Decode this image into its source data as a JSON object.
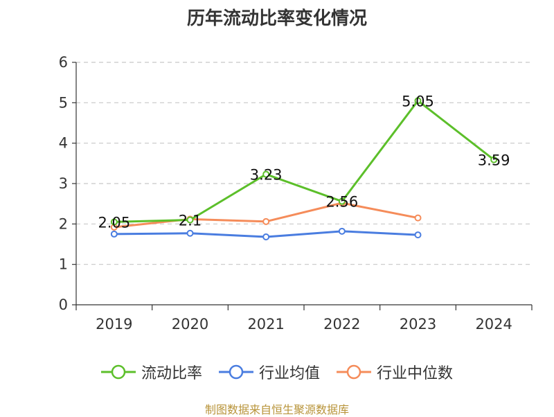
{
  "chart_data": {
    "type": "line",
    "title": "历年流动比率变化情况",
    "categories": [
      "2019",
      "2020",
      "2021",
      "2022",
      "2023",
      "2024"
    ],
    "ylim": [
      0,
      6
    ],
    "yticks": [
      0,
      1,
      2,
      3,
      4,
      5,
      6
    ],
    "grid": true,
    "legend_position": "bottom",
    "series": [
      {
        "name": "流动比率",
        "color": "#5cbf2a",
        "values": [
          2.05,
          2.1,
          3.23,
          2.56,
          5.05,
          3.59
        ],
        "labels": [
          "2.05",
          "2.1",
          "3.23",
          "2.56",
          "5.05",
          "3.59"
        ]
      },
      {
        "name": "行业均值",
        "color": "#4a7de0",
        "values": [
          1.75,
          1.77,
          1.68,
          1.82,
          1.73,
          null
        ]
      },
      {
        "name": "行业中位数",
        "color": "#f58c5a",
        "values": [
          1.92,
          2.12,
          2.06,
          2.52,
          2.15,
          null
        ]
      }
    ]
  },
  "footer": {
    "source": "制图数据来自恒生聚源数据库"
  }
}
